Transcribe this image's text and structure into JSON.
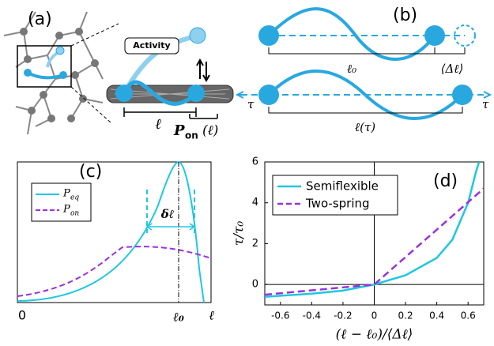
{
  "panel_a": {
    "label": "(a)",
    "activity": "Activity",
    "length": "ℓ",
    "p_on": "P",
    "p_on_sub": "on",
    "p_on_arg": "(ℓ)"
  },
  "panel_b": {
    "label": "(b)",
    "rest_length": "ℓ₀",
    "fluctuation": "⟨Δℓ⟩",
    "tension_left": "τ",
    "tension_right": "τ",
    "stretched_length": "ℓ(τ)"
  },
  "panel_c": {
    "label": "(c)",
    "legend": [
      {
        "symbol": "P",
        "sub": "eq"
      },
      {
        "symbol": "P",
        "sub": "on"
      }
    ],
    "width": "δℓ",
    "x_labels": [
      "0",
      "ℓ₀",
      "ℓ"
    ]
  },
  "chart_data": {
    "type": "line",
    "label": "(d)",
    "x_label": "(ℓ − ℓ₀)/⟨Δℓ⟩",
    "y_label": "τ/τ₀",
    "xlim": [
      -0.7,
      0.7
    ],
    "ylim": [
      -1,
      6
    ],
    "xticks": [
      -0.6,
      -0.4,
      -0.2,
      0,
      0.2,
      0.4,
      0.6
    ],
    "yticks": [
      0,
      2,
      4,
      6
    ],
    "series": [
      {
        "name": "Semiflexible",
        "color": "#1ec8e0",
        "dash": false,
        "x": [
          -0.7,
          -0.6,
          -0.4,
          -0.2,
          0,
          0.2,
          0.4,
          0.5,
          0.6,
          0.65,
          0.67
        ],
        "values": [
          -0.6,
          -0.55,
          -0.45,
          -0.3,
          0,
          0.45,
          1.3,
          2.2,
          4.0,
          5.5,
          6
        ]
      },
      {
        "name": "Two-spring",
        "color": "#9b30e0",
        "dash": true,
        "x": [
          -0.7,
          0,
          0.7
        ],
        "values": [
          -0.5,
          0,
          4.7
        ]
      }
    ],
    "legend": "upper left"
  }
}
